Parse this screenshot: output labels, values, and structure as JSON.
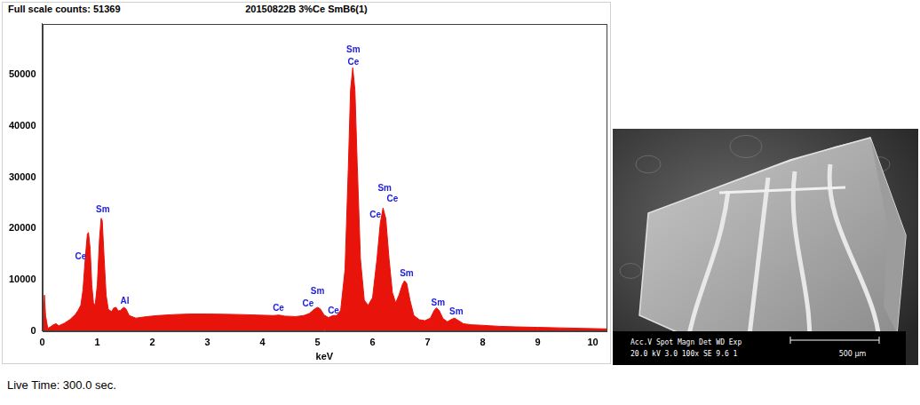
{
  "header": {
    "left": "Full scale counts: 51369",
    "center": "20150822B 3%Ce SmB6(1)"
  },
  "chart_data": {
    "type": "area",
    "color": "#e8140c",
    "x_label": "keV",
    "xlim": [
      0,
      10.25
    ],
    "xticks": [
      0,
      1,
      2,
      3,
      4,
      5,
      6,
      7,
      8,
      9,
      10
    ],
    "ylim": [
      0,
      60000
    ],
    "yticks": [
      0,
      10000,
      20000,
      30000,
      40000,
      50000
    ],
    "grid": false,
    "x": [
      0,
      0.02,
      0.04,
      0.06,
      0.1,
      0.15,
      0.2,
      0.25,
      0.3,
      0.4,
      0.5,
      0.55,
      0.6,
      0.65,
      0.7,
      0.74,
      0.78,
      0.82,
      0.84,
      0.87,
      0.9,
      0.93,
      0.96,
      1.0,
      1.04,
      1.07,
      1.09,
      1.12,
      1.16,
      1.2,
      1.26,
      1.3,
      1.34,
      1.38,
      1.42,
      1.48,
      1.52,
      1.58,
      1.7,
      1.9,
      2.1,
      2.4,
      2.7,
      3.0,
      3.3,
      3.6,
      3.9,
      4.2,
      4.3,
      4.4,
      4.6,
      4.75,
      4.85,
      4.95,
      5.0,
      5.05,
      5.12,
      5.2,
      5.28,
      5.35,
      5.42,
      5.5,
      5.56,
      5.6,
      5.64,
      5.68,
      5.72,
      5.78,
      5.85,
      5.92,
      6.0,
      6.08,
      6.14,
      6.19,
      6.24,
      6.3,
      6.36,
      6.42,
      6.48,
      6.54,
      6.58,
      6.62,
      6.68,
      6.75,
      6.85,
      6.95,
      7.05,
      7.12,
      7.16,
      7.21,
      7.28,
      7.36,
      7.44,
      7.49,
      7.55,
      7.65,
      7.8,
      8.0,
      8.3,
      8.6,
      9.0,
      9.4,
      9.8,
      10.25
    ],
    "values": [
      0,
      2000,
      7000,
      3000,
      500,
      800,
      1200,
      1400,
      1000,
      1500,
      2200,
      2700,
      3200,
      4000,
      5000,
      8000,
      14000,
      19000,
      19200,
      16000,
      9000,
      5500,
      5000,
      9000,
      18000,
      22000,
      21500,
      15000,
      7000,
      4200,
      3800,
      4500,
      4600,
      3900,
      4000,
      4600,
      4300,
      3000,
      2500,
      2800,
      3000,
      3200,
      3300,
      3300,
      3250,
      3200,
      3100,
      3000,
      3100,
      2900,
      2800,
      3000,
      3400,
      4300,
      4600,
      4300,
      3100,
      2600,
      3000,
      3000,
      4000,
      12000,
      32000,
      47000,
      51369,
      47000,
      33000,
      14000,
      6000,
      5000,
      6500,
      14000,
      21000,
      24000,
      22000,
      14000,
      7500,
      5500,
      7000,
      9000,
      9800,
      9300,
      6000,
      3000,
      2200,
      2000,
      2500,
      4000,
      4500,
      4000,
      2400,
      1800,
      2300,
      2500,
      2100,
      1400,
      1200,
      1100,
      900,
      800,
      700,
      600,
      500,
      400
    ],
    "annotation_color": "#2020e0",
    "annotations": [
      {
        "text": "Ce",
        "x": 0.7,
        "y": 14400
      },
      {
        "text": "Sm",
        "x": 1.1,
        "y": 23600
      },
      {
        "text": "Al",
        "x": 1.5,
        "y": 5700
      },
      {
        "text": "Ce",
        "x": 4.29,
        "y": 4400
      },
      {
        "text": "Ce",
        "x": 4.83,
        "y": 5200
      },
      {
        "text": "Sm",
        "x": 5.0,
        "y": 7700
      },
      {
        "text": "Ce",
        "x": 5.29,
        "y": 3900
      },
      {
        "text": "Sm",
        "x": 5.65,
        "y": 54900
      },
      {
        "text": "Ce",
        "x": 5.65,
        "y": 52500
      },
      {
        "text": "Sm",
        "x": 6.22,
        "y": 27850
      },
      {
        "text": "Ce",
        "x": 6.36,
        "y": 25700
      },
      {
        "text": "Ce",
        "x": 6.05,
        "y": 22650
      },
      {
        "text": "Sm",
        "x": 6.62,
        "y": 11240
      },
      {
        "text": "Sm",
        "x": 7.19,
        "y": 5370
      },
      {
        "text": "Sm",
        "x": 7.52,
        "y": 3700
      }
    ]
  },
  "footer": "Live Time: 300.0 sec.",
  "sem_image": {
    "info_header": "Acc.V  Spot Magn    Det  WD  Exp",
    "info_values": "20.0 kV 3.0  100x    SE   9.6  1",
    "scale_bar": "500 μm"
  }
}
